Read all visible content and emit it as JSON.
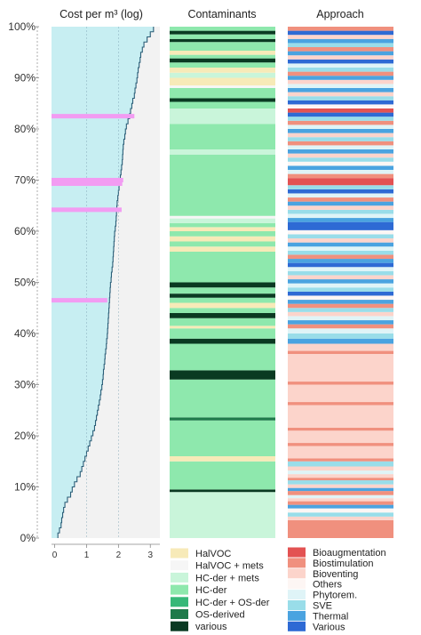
{
  "chart_data": {
    "type": "bar",
    "titles": {
      "cost_panel": "Cost per m³ (log)",
      "contaminants_panel": "Contaminants",
      "approach_panel": "Approach"
    },
    "y_axis": {
      "ticks": [
        "0%",
        "10%",
        "20%",
        "30%",
        "40%",
        "50%",
        "60%",
        "70%",
        "80%",
        "90%",
        "100%"
      ],
      "ylim": [
        0,
        100
      ]
    },
    "x_axis": {
      "ticks": [
        "0",
        "1",
        "2",
        "3"
      ],
      "xlim": [
        -0.1,
        3.3
      ]
    },
    "grid": "vertical dashed at x = 1, 2",
    "cost_curve_log10": [
      0.1,
      0.15,
      0.2,
      0.22,
      0.25,
      0.28,
      0.32,
      0.4,
      0.5,
      0.55,
      0.62,
      0.7,
      0.8,
      0.85,
      0.9,
      0.95,
      1.0,
      1.05,
      1.1,
      1.15,
      1.2,
      1.25,
      1.28,
      1.31,
      1.34,
      1.37,
      1.4,
      1.43,
      1.45,
      1.48,
      1.5,
      1.52,
      1.53,
      1.55,
      1.57,
      1.58,
      1.6,
      1.62,
      1.63,
      1.65,
      1.66,
      1.67,
      1.68,
      1.69,
      1.7,
      1.71,
      1.72,
      1.73,
      1.74,
      1.75,
      1.77,
      1.78,
      1.8,
      1.82,
      1.83,
      1.84,
      1.85,
      1.86,
      1.87,
      1.88,
      1.9,
      1.92,
      1.93,
      1.94,
      1.95,
      1.96,
      1.98,
      2.0,
      2.02,
      2.04,
      2.06,
      2.08,
      2.1,
      2.12,
      2.13,
      2.14,
      2.15,
      2.17,
      2.2,
      2.22,
      2.25,
      2.3,
      2.35,
      2.38,
      2.42,
      2.45,
      2.5,
      2.52,
      2.55,
      2.58,
      2.6,
      2.62,
      2.65,
      2.68,
      2.7,
      2.75,
      2.8,
      2.9,
      3.0,
      3.1
    ],
    "highlight_bands": [
      {
        "pct": 82.5,
        "value": 2.5
      },
      {
        "pct": 70.0,
        "value": 2.15
      },
      {
        "pct": 69.3,
        "value": 2.12
      },
      {
        "pct": 64.2,
        "value": 2.1
      },
      {
        "pct": 46.5,
        "value": 1.65
      }
    ],
    "colors": {
      "area": "#c7eef2",
      "curve": "#2a5d77",
      "background": "#f2f2f2",
      "highlight": "#f29cf2"
    },
    "contaminants": {
      "legend": [
        {
          "name": "HalVOC",
          "color": "#f7eab8"
        },
        {
          "name": "HalVOC + mets",
          "color": "#f6f6f6"
        },
        {
          "name": "HC-der  + mets",
          "color": "#c9f5da"
        },
        {
          "name": "HC-der",
          "color": "#8ee8ad"
        },
        {
          "name": "HC-der + OS-der",
          "color": "#36b878"
        },
        {
          "name": "OS-derived",
          "color": "#1e7a4a"
        },
        {
          "name": "various",
          "color": "#0a3a22"
        }
      ],
      "segments": [
        [
          0,
          9,
          2
        ],
        [
          9,
          9.5,
          6
        ],
        [
          9.5,
          15,
          3
        ],
        [
          15,
          16,
          0
        ],
        [
          16,
          23,
          3
        ],
        [
          23,
          23.6,
          5
        ],
        [
          23.6,
          31,
          3
        ],
        [
          31,
          32.8,
          6
        ],
        [
          32.8,
          38,
          3
        ],
        [
          38,
          39,
          6
        ],
        [
          39,
          41,
          3
        ],
        [
          41,
          41.5,
          0
        ],
        [
          41.5,
          43,
          3
        ],
        [
          43,
          44,
          6
        ],
        [
          44,
          45,
          3
        ],
        [
          45,
          46,
          0
        ],
        [
          46,
          47,
          3
        ],
        [
          47,
          47.8,
          6
        ],
        [
          47.8,
          49,
          3
        ],
        [
          49,
          50,
          6
        ],
        [
          50,
          56,
          3
        ],
        [
          56,
          57,
          0
        ],
        [
          57,
          58,
          3
        ],
        [
          58,
          59,
          0
        ],
        [
          59,
          60,
          3
        ],
        [
          60,
          60.8,
          0
        ],
        [
          60.8,
          61.6,
          3
        ],
        [
          61.6,
          62.5,
          2
        ],
        [
          62.5,
          63,
          1
        ],
        [
          63,
          75,
          3
        ],
        [
          75,
          76,
          2
        ],
        [
          76,
          81,
          3
        ],
        [
          81,
          84,
          2
        ],
        [
          84,
          85.3,
          3
        ],
        [
          85.3,
          86,
          6
        ],
        [
          86,
          88,
          3
        ],
        [
          88,
          88.5,
          1
        ],
        [
          88.5,
          90,
          0
        ],
        [
          90,
          91,
          2
        ],
        [
          91,
          92,
          0
        ],
        [
          92,
          93,
          3
        ],
        [
          93,
          93.8,
          6
        ],
        [
          93.8,
          94.5,
          3
        ],
        [
          94.5,
          95.3,
          0
        ],
        [
          95.3,
          97,
          3
        ],
        [
          97,
          97.6,
          6
        ],
        [
          97.6,
          98.5,
          3
        ],
        [
          98.5,
          99.2,
          6
        ],
        [
          99.2,
          100,
          3
        ]
      ]
    },
    "approach": {
      "legend": [
        {
          "name": "Bioaugmentation",
          "color": "#e35252"
        },
        {
          "name": "Biostimulation",
          "color": "#f0907e"
        },
        {
          "name": "Bioventing",
          "color": "#fcd4cb"
        },
        {
          "name": "Others",
          "color": "#fdf6f4"
        },
        {
          "name": "Phytorem.",
          "color": "#dff4f7"
        },
        {
          "name": "SVE",
          "color": "#99dde9"
        },
        {
          "name": "Thermal",
          "color": "#4aa3e0"
        },
        {
          "name": "Various",
          "color": "#2e6ad4"
        }
      ],
      "segments": [
        [
          0,
          3.5,
          1
        ],
        [
          3.5,
          4.2,
          2
        ],
        [
          4.2,
          5,
          5
        ],
        [
          5,
          5.8,
          3
        ],
        [
          5.8,
          6.5,
          6
        ],
        [
          6.5,
          7.2,
          1
        ],
        [
          7.2,
          7.8,
          2
        ],
        [
          7.8,
          8.4,
          4
        ],
        [
          8.4,
          9.2,
          1
        ],
        [
          9.2,
          9.8,
          6
        ],
        [
          9.8,
          10.5,
          2
        ],
        [
          10.5,
          11.3,
          5
        ],
        [
          11.3,
          11.8,
          1
        ],
        [
          11.8,
          12.5,
          2
        ],
        [
          12.5,
          13.2,
          4
        ],
        [
          13.2,
          14,
          2
        ],
        [
          14,
          15,
          5
        ],
        [
          15,
          15.6,
          1
        ],
        [
          15.6,
          18,
          2
        ],
        [
          18,
          18.6,
          1
        ],
        [
          18.6,
          21,
          2
        ],
        [
          21,
          21.6,
          1
        ],
        [
          21.6,
          26,
          2
        ],
        [
          26,
          26.6,
          1
        ],
        [
          26.6,
          30,
          2
        ],
        [
          30,
          30.6,
          1
        ],
        [
          30.6,
          36,
          2
        ],
        [
          36,
          36.6,
          1
        ],
        [
          36.6,
          38,
          2
        ],
        [
          38,
          39,
          6
        ],
        [
          39,
          40,
          5
        ],
        [
          40,
          41,
          4
        ],
        [
          41,
          41.8,
          1
        ],
        [
          41.8,
          42.6,
          6
        ],
        [
          42.6,
          43.4,
          4
        ],
        [
          43.4,
          44.2,
          2
        ],
        [
          44.2,
          45,
          5
        ],
        [
          45,
          45.8,
          1
        ],
        [
          45.8,
          46.6,
          6
        ],
        [
          46.6,
          47.4,
          3
        ],
        [
          47.4,
          48.2,
          7
        ],
        [
          48.2,
          49,
          5
        ],
        [
          49,
          49.8,
          4
        ],
        [
          49.8,
          50.6,
          6
        ],
        [
          50.6,
          51.4,
          2
        ],
        [
          51.4,
          52.2,
          5
        ],
        [
          52.2,
          53,
          4
        ],
        [
          53,
          53.8,
          7
        ],
        [
          53.8,
          54.6,
          6
        ],
        [
          54.6,
          55.4,
          1
        ],
        [
          55.4,
          56.2,
          5
        ],
        [
          56.2,
          57,
          4
        ],
        [
          57,
          57.8,
          6
        ],
        [
          57.8,
          58.6,
          2
        ],
        [
          58.6,
          59.4,
          5
        ],
        [
          59.4,
          60.2,
          3
        ],
        [
          60.2,
          61.8,
          7
        ],
        [
          61.8,
          62.6,
          6
        ],
        [
          62.6,
          63.4,
          4
        ],
        [
          63.4,
          64.2,
          5
        ],
        [
          64.2,
          65,
          2
        ],
        [
          65,
          65.8,
          6
        ],
        [
          65.8,
          66.6,
          1
        ],
        [
          66.6,
          67.4,
          4
        ],
        [
          67.4,
          68.2,
          7
        ],
        [
          68.2,
          69,
          5
        ],
        [
          69,
          70.4,
          0
        ],
        [
          70.4,
          71.2,
          1
        ],
        [
          71.2,
          72,
          4
        ],
        [
          72,
          72.8,
          6
        ],
        [
          72.8,
          73.6,
          3
        ],
        [
          73.6,
          74.4,
          5
        ],
        [
          74.4,
          75.2,
          2
        ],
        [
          75.2,
          76,
          6
        ],
        [
          76,
          76.8,
          4
        ],
        [
          76.8,
          77.6,
          1
        ],
        [
          77.6,
          78.4,
          5
        ],
        [
          78.4,
          79.2,
          2
        ],
        [
          79.2,
          80,
          6
        ],
        [
          80,
          80.8,
          4
        ],
        [
          80.8,
          81.6,
          1
        ],
        [
          81.6,
          82.4,
          5
        ],
        [
          82.4,
          83.2,
          7
        ],
        [
          83.2,
          84,
          0
        ],
        [
          84,
          84.8,
          3
        ],
        [
          84.8,
          85.6,
          7
        ],
        [
          85.6,
          86.4,
          5
        ],
        [
          86.4,
          87.2,
          2
        ],
        [
          87.2,
          88,
          6
        ],
        [
          88,
          88.8,
          4
        ],
        [
          88.8,
          89.6,
          2
        ],
        [
          89.6,
          90.4,
          6
        ],
        [
          90.4,
          91.2,
          1
        ],
        [
          91.2,
          92,
          5
        ],
        [
          92,
          92.8,
          4
        ],
        [
          92.8,
          93.6,
          7
        ],
        [
          93.6,
          94.4,
          2
        ],
        [
          94.4,
          95.2,
          6
        ],
        [
          95.2,
          96,
          1
        ],
        [
          96,
          96.8,
          5
        ],
        [
          96.8,
          97.6,
          6
        ],
        [
          97.6,
          98.4,
          2
        ],
        [
          98.4,
          99.2,
          7
        ],
        [
          99.2,
          100,
          1
        ]
      ]
    }
  }
}
